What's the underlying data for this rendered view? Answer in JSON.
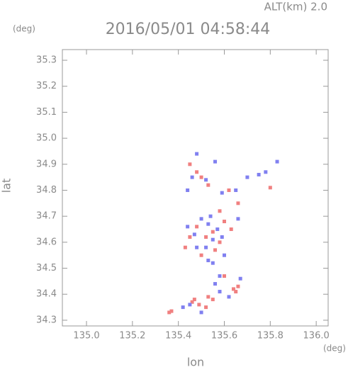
{
  "chart_data": {
    "type": "scatter",
    "title": "2016/05/01 04:58:44",
    "subtitle": "ALT(km) 2.0",
    "y_unit": "(deg)",
    "x_unit": "(deg)",
    "xlabel": "lon",
    "ylabel": "lat",
    "xlim": [
      134.895,
      136.052
    ],
    "ylim": [
      34.278,
      35.341
    ],
    "xticks": [
      {
        "value": 135,
        "label": "135.0"
      },
      135.2,
      135.4,
      135.6,
      135.8,
      {
        "value": 136,
        "label": "136.0"
      }
    ],
    "yticks": [
      34.3,
      34.4,
      34.5,
      34.6,
      34.7,
      34.8,
      34.9,
      {
        "value": 35,
        "label": "35.0"
      },
      35.1,
      35.2,
      35.3
    ],
    "series": [
      {
        "color": "#f08080",
        "x": [
          135.36,
          135.37,
          135.46,
          135.47,
          135.53,
          135.55,
          135.64,
          135.66,
          135.65,
          135.52,
          135.55,
          135.48,
          135.58,
          135.6,
          135.5,
          135.56,
          135.62,
          135.8,
          135.66,
          135.45,
          135.48,
          135.53,
          135.5,
          135.63,
          135.45,
          135.43,
          135.58,
          135.49,
          135.52,
          135.6
        ],
        "y": [
          34.33,
          34.335,
          34.37,
          34.38,
          34.39,
          34.38,
          34.42,
          34.43,
          34.41,
          34.62,
          34.64,
          34.66,
          34.6,
          34.68,
          34.55,
          34.57,
          34.8,
          34.81,
          34.75,
          34.9,
          34.87,
          34.82,
          34.85,
          34.65,
          34.62,
          34.58,
          34.72,
          34.36,
          34.35,
          34.47
        ]
      },
      {
        "color": "#8080f0",
        "x": [
          135.48,
          135.56,
          135.83,
          135.75,
          135.78,
          135.7,
          135.46,
          135.52,
          135.44,
          135.59,
          135.65,
          135.5,
          135.53,
          135.55,
          135.47,
          135.57,
          135.52,
          135.59,
          135.44,
          135.54,
          135.55,
          135.58,
          135.56,
          135.67,
          135.5,
          135.42,
          135.45,
          135.58,
          135.62,
          135.6,
          135.53,
          135.66,
          135.48
        ],
        "y": [
          34.94,
          34.91,
          34.91,
          34.86,
          34.87,
          34.85,
          34.85,
          34.84,
          34.8,
          34.79,
          34.8,
          34.69,
          34.67,
          34.61,
          34.63,
          34.65,
          34.58,
          34.62,
          34.66,
          34.7,
          34.52,
          34.47,
          34.44,
          34.46,
          34.33,
          34.35,
          34.36,
          34.41,
          34.39,
          34.55,
          34.53,
          34.69,
          34.58
        ]
      }
    ]
  }
}
